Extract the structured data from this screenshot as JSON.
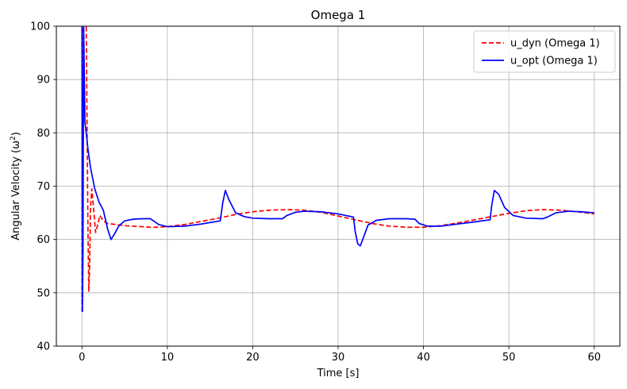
{
  "chart_data": {
    "type": "line",
    "title": "Omega 1",
    "xlabel": "Time [s]",
    "ylabel": "Angular Velocity (ω²)",
    "xlim": [
      -3,
      63
    ],
    "ylim": [
      40,
      100
    ],
    "xticks": [
      0,
      10,
      20,
      30,
      40,
      50,
      60
    ],
    "yticks": [
      40,
      50,
      60,
      70,
      80,
      90,
      100
    ],
    "grid": true,
    "legend_position": "top-right",
    "series": [
      {
        "name": "u_dyn (Omega 1)",
        "color": "#ff0000",
        "dash": "dashed",
        "x": [
          0,
          0.05,
          0.15,
          0.3,
          0.5,
          0.7,
          0.8,
          0.9,
          1.0,
          1.15,
          1.35,
          1.6,
          1.8,
          2.1,
          2.5,
          3.0,
          4.0,
          5.0,
          6.0,
          7.0,
          8.0,
          9.0,
          10.0,
          12.0,
          14.0,
          16.0,
          18.0,
          20.0,
          22.0,
          24.0,
          26.0,
          28.0,
          30.0,
          32.0,
          34.0,
          36.0,
          38.0,
          40.0,
          42.0,
          44.0,
          46.0,
          48.0,
          50.0,
          52.0,
          54.0,
          56.0,
          58.0,
          60.0
        ],
        "values": [
          46.5,
          100,
          104,
          102,
          100,
          62,
          50.3,
          55,
          66,
          69.5,
          66,
          61.3,
          62.5,
          64.5,
          63.5,
          63.0,
          62.8,
          62.6,
          62.5,
          62.4,
          62.3,
          62.3,
          62.4,
          62.8,
          63.4,
          64.0,
          64.7,
          65.2,
          65.5,
          65.6,
          65.5,
          65.1,
          64.4,
          63.7,
          63.0,
          62.5,
          62.3,
          62.3,
          62.6,
          63.1,
          63.7,
          64.3,
          64.9,
          65.4,
          65.6,
          65.5,
          65.2,
          64.8
        ]
      },
      {
        "name": "u_opt (Omega 1)",
        "color": "#0000ff",
        "dash": "solid",
        "x": [
          0,
          0.05,
          0.12,
          0.2,
          0.35,
          0.5,
          0.7,
          1.0,
          1.5,
          2.0,
          2.5,
          3.0,
          3.4,
          3.8,
          4.3,
          5.0,
          6.0,
          7.0,
          8.0,
          9.0,
          10.0,
          12.0,
          14.0,
          16.2,
          16.5,
          16.8,
          17.2,
          18.0,
          19.0,
          20.0,
          22.0,
          23.5,
          24.0,
          25.0,
          26.0,
          28.0,
          30.0,
          31.8,
          32.0,
          32.3,
          32.6,
          33.0,
          33.5,
          34.5,
          36.0,
          38.0,
          39.0,
          39.5,
          40.5,
          42.0,
          44.0,
          46.0,
          47.8,
          48.0,
          48.3,
          48.8,
          49.5,
          50.5,
          52.0,
          54.0,
          54.5,
          55.5,
          57.0,
          58.5,
          60.0
        ],
        "values": [
          100,
          46.5,
          58,
          100,
          82,
          80,
          77,
          73.5,
          69.5,
          67,
          65.5,
          62,
          60,
          61,
          62.5,
          63.5,
          63.8,
          63.9,
          63.9,
          62.8,
          62.4,
          62.5,
          62.9,
          63.5,
          67,
          69.2,
          67.5,
          65,
          64.3,
          64.0,
          63.9,
          63.9,
          64.5,
          65.1,
          65.3,
          65.2,
          64.8,
          64.2,
          61.5,
          59.2,
          58.8,
          60.5,
          62.7,
          63.6,
          63.9,
          63.9,
          63.8,
          63.0,
          62.5,
          62.5,
          62.9,
          63.3,
          63.7,
          66.5,
          69.2,
          68.5,
          66,
          64.5,
          64.0,
          63.9,
          64.2,
          65.0,
          65.3,
          65.2,
          65.0
        ]
      }
    ]
  }
}
